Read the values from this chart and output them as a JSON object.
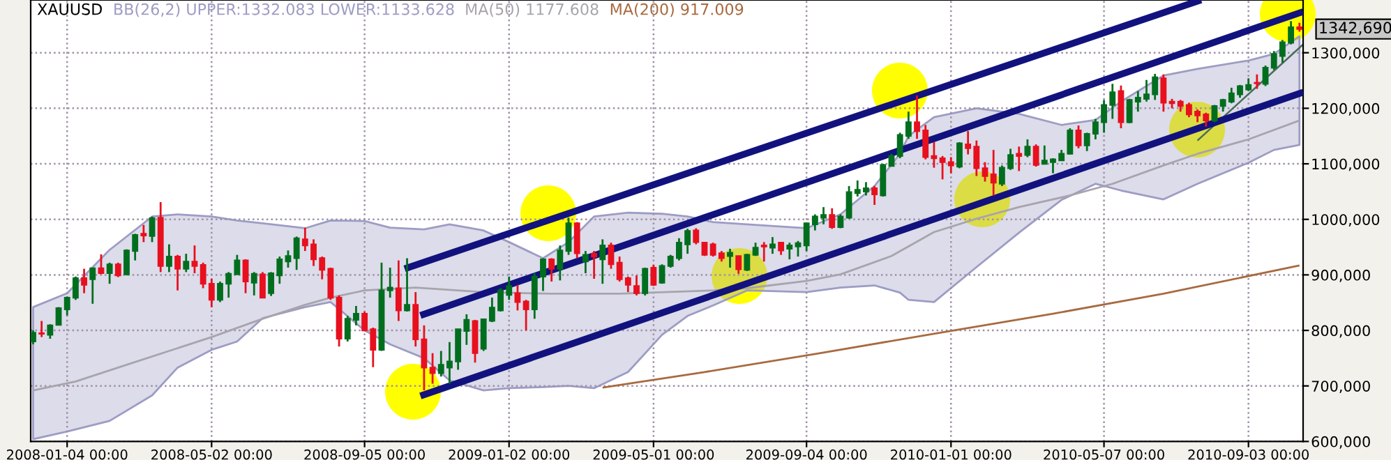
{
  "chart_data": {
    "type": "candlestick",
    "title": "XAUUSD",
    "x": [
      "2007-12-07",
      "2007-12-14",
      "2007-12-21",
      "2007-12-28",
      "2008-01-04",
      "2008-01-11",
      "2008-01-18",
      "2008-01-25",
      "2008-02-01",
      "2008-02-08",
      "2008-02-15",
      "2008-02-22",
      "2008-02-29",
      "2008-03-07",
      "2008-03-14",
      "2008-03-21",
      "2008-03-28",
      "2008-04-04",
      "2008-04-11",
      "2008-04-18",
      "2008-04-25",
      "2008-05-02",
      "2008-05-09",
      "2008-05-16",
      "2008-05-23",
      "2008-05-30",
      "2008-06-06",
      "2008-06-13",
      "2008-06-20",
      "2008-06-27",
      "2008-07-04",
      "2008-07-11",
      "2008-07-18",
      "2008-07-25",
      "2008-08-01",
      "2008-08-08",
      "2008-08-15",
      "2008-08-22",
      "2008-08-29",
      "2008-09-05",
      "2008-09-12",
      "2008-09-19",
      "2008-09-26",
      "2008-10-03",
      "2008-10-10",
      "2008-10-17",
      "2008-10-24",
      "2008-10-31",
      "2008-11-07",
      "2008-11-14",
      "2008-11-21",
      "2008-11-28",
      "2008-12-05",
      "2008-12-12",
      "2008-12-19",
      "2008-12-26",
      "2009-01-02",
      "2009-01-09",
      "2009-01-16",
      "2009-01-23",
      "2009-01-30",
      "2009-02-06",
      "2009-02-13",
      "2009-02-20",
      "2009-02-27",
      "2009-03-06",
      "2009-03-13",
      "2009-03-20",
      "2009-03-27",
      "2009-04-03",
      "2009-04-10",
      "2009-04-17",
      "2009-04-24",
      "2009-05-01",
      "2009-05-08",
      "2009-05-15",
      "2009-05-22",
      "2009-05-29",
      "2009-06-05",
      "2009-06-12",
      "2009-06-19",
      "2009-06-26",
      "2009-07-03",
      "2009-07-10",
      "2009-07-17",
      "2009-07-24",
      "2009-07-31",
      "2009-08-07",
      "2009-08-14",
      "2009-08-21",
      "2009-08-28",
      "2009-09-04",
      "2009-09-11",
      "2009-09-18",
      "2009-09-25",
      "2009-10-02",
      "2009-10-09",
      "2009-10-16",
      "2009-10-23",
      "2009-10-30",
      "2009-11-06",
      "2009-11-13",
      "2009-11-20",
      "2009-11-27",
      "2009-12-04",
      "2009-12-11",
      "2009-12-18",
      "2009-12-25",
      "2010-01-01",
      "2010-01-08",
      "2010-01-15",
      "2010-01-22",
      "2010-01-29",
      "2010-02-05",
      "2010-02-12",
      "2010-02-19",
      "2010-02-26",
      "2010-03-05",
      "2010-03-12",
      "2010-03-19",
      "2010-03-26",
      "2010-04-02",
      "2010-04-09",
      "2010-04-16",
      "2010-04-23",
      "2010-04-30",
      "2010-05-07",
      "2010-05-14",
      "2010-05-21",
      "2010-05-28",
      "2010-06-04",
      "2010-06-11",
      "2010-06-18",
      "2010-06-25",
      "2010-07-02",
      "2010-07-09",
      "2010-07-16",
      "2010-07-23",
      "2010-07-30",
      "2010-08-06",
      "2010-08-13",
      "2010-08-20",
      "2010-08-27",
      "2010-09-03",
      "2010-09-10",
      "2010-09-17",
      "2010-09-24",
      "2010-10-01",
      "2010-10-08",
      "2010-10-15"
    ],
    "ohlc": [
      [
        780000,
        800000,
        775000,
        796000
      ],
      [
        795000,
        817000,
        788000,
        794000
      ],
      [
        792000,
        811000,
        785000,
        809000
      ],
      [
        810000,
        842000,
        809000,
        840000
      ],
      [
        838000,
        861000,
        827000,
        859000
      ],
      [
        859000,
        897000,
        855000,
        894000
      ],
      [
        894000,
        911000,
        867000,
        882000
      ],
      [
        892000,
        913000,
        848000,
        912000
      ],
      [
        912000,
        937000,
        901000,
        903000
      ],
      [
        903000,
        922000,
        884000,
        919000
      ],
      [
        919000,
        922000,
        896000,
        899000
      ],
      [
        901000,
        946000,
        899000,
        944000
      ],
      [
        943000,
        974000,
        926000,
        972000
      ],
      [
        974000,
        990000,
        959000,
        971000
      ],
      [
        970000,
        1005000,
        959000,
        1002000
      ],
      [
        1003000,
        1031000,
        905000,
        916000
      ],
      [
        916000,
        955000,
        905000,
        933000
      ],
      [
        933000,
        936000,
        872000,
        911000
      ],
      [
        911000,
        938000,
        905000,
        924000
      ],
      [
        924000,
        953000,
        903000,
        916000
      ],
      [
        918000,
        922000,
        876000,
        884000
      ],
      [
        884000,
        893000,
        842000,
        855000
      ],
      [
        855000,
        888000,
        851000,
        884000
      ],
      [
        884000,
        905000,
        859000,
        902000
      ],
      [
        901000,
        936000,
        901000,
        926000
      ],
      [
        926000,
        928000,
        867000,
        888000
      ],
      [
        886000,
        905000,
        863000,
        902000
      ],
      [
        901000,
        905000,
        859000,
        859000
      ],
      [
        867000,
        905000,
        862000,
        903000
      ],
      [
        899000,
        933000,
        884000,
        928000
      ],
      [
        924000,
        944000,
        913000,
        934000
      ],
      [
        930000,
        969000,
        909000,
        966000
      ],
      [
        964000,
        985000,
        943000,
        953000
      ],
      [
        955000,
        964000,
        916000,
        928000
      ],
      [
        930000,
        933000,
        892000,
        909000
      ],
      [
        911000,
        913000,
        855000,
        859000
      ],
      [
        859000,
        863000,
        771000,
        785000
      ],
      [
        785000,
        826000,
        780000,
        821000
      ],
      [
        819000,
        844000,
        809000,
        830000
      ],
      [
        830000,
        834000,
        799000,
        800000
      ],
      [
        802000,
        805000,
        734000,
        765000
      ],
      [
        765000,
        922000,
        763000,
        872000
      ],
      [
        872000,
        913000,
        859000,
        877000
      ],
      [
        876000,
        926000,
        817000,
        836000
      ],
      [
        836000,
        930000,
        834000,
        846000
      ],
      [
        846000,
        869000,
        771000,
        784000
      ],
      [
        784000,
        809000,
        692000,
        733000
      ],
      [
        733000,
        759000,
        704000,
        723000
      ],
      [
        723000,
        763000,
        717000,
        738000
      ],
      [
        733000,
        779000,
        704000,
        744000
      ],
      [
        744000,
        802000,
        729000,
        802000
      ],
      [
        799000,
        829000,
        774000,
        819000
      ],
      [
        817000,
        819000,
        742000,
        759000
      ],
      [
        767000,
        820000,
        763000,
        820000
      ],
      [
        817000,
        859000,
        815000,
        841000
      ],
      [
        836000,
        876000,
        834000,
        872000
      ],
      [
        864000,
        897000,
        855000,
        880000
      ],
      [
        867000,
        882000,
        836000,
        851000
      ],
      [
        852000,
        855000,
        800000,
        838000
      ],
      [
        838000,
        903000,
        821000,
        897000
      ],
      [
        897000,
        930000,
        871000,
        928000
      ],
      [
        928000,
        930000,
        888000,
        911000
      ],
      [
        911000,
        953000,
        890000,
        944000
      ],
      [
        943000,
        1003000,
        936000,
        993000
      ],
      [
        993000,
        995000,
        930000,
        939000
      ],
      [
        924000,
        943000,
        903000,
        936000
      ],
      [
        938000,
        943000,
        893000,
        933000
      ],
      [
        928000,
        964000,
        884000,
        953000
      ],
      [
        953000,
        958000,
        911000,
        919000
      ],
      [
        922000,
        933000,
        888000,
        892000
      ],
      [
        894000,
        897000,
        869000,
        882000
      ],
      [
        880000,
        899000,
        863000,
        867000
      ],
      [
        867000,
        913000,
        863000,
        911000
      ],
      [
        913000,
        918000,
        880000,
        882000
      ],
      [
        886000,
        919000,
        884000,
        916000
      ],
      [
        916000,
        936000,
        913000,
        933000
      ],
      [
        930000,
        966000,
        926000,
        958000
      ],
      [
        955000,
        983000,
        938000,
        979000
      ],
      [
        980000,
        984000,
        955000,
        959000
      ],
      [
        958000,
        959000,
        934000,
        936000
      ],
      [
        955000,
        958000,
        933000,
        936000
      ],
      [
        939000,
        943000,
        924000,
        930000
      ],
      [
        934000,
        947000,
        913000,
        940000
      ],
      [
        934000,
        934000,
        902000,
        910000
      ],
      [
        909000,
        938000,
        907000,
        936000
      ],
      [
        936000,
        958000,
        934000,
        949000
      ],
      [
        953000,
        959000,
        924000,
        951000
      ],
      [
        949000,
        968000,
        938000,
        955000
      ],
      [
        958000,
        959000,
        936000,
        944000
      ],
      [
        947000,
        958000,
        928000,
        953000
      ],
      [
        951000,
        961000,
        933000,
        957000
      ],
      [
        953000,
        994000,
        943000,
        993000
      ],
      [
        991000,
        1009000,
        980000,
        1005000
      ],
      [
        1003000,
        1022000,
        991000,
        1008000
      ],
      [
        1008000,
        1020000,
        983000,
        986000
      ],
      [
        986000,
        1009000,
        984000,
        1005000
      ],
      [
        1003000,
        1060000,
        1001000,
        1049000
      ],
      [
        1047000,
        1070000,
        1041000,
        1053000
      ],
      [
        1050000,
        1067000,
        1043000,
        1056000
      ],
      [
        1056000,
        1060000,
        1026000,
        1045000
      ],
      [
        1043000,
        1100000,
        1041000,
        1098000
      ],
      [
        1096000,
        1118000,
        1095000,
        1114000
      ],
      [
        1114000,
        1156000,
        1110000,
        1152000
      ],
      [
        1150000,
        1194000,
        1145000,
        1175000
      ],
      [
        1175000,
        1223000,
        1145000,
        1159000
      ],
      [
        1160000,
        1170000,
        1108000,
        1112000
      ],
      [
        1114000,
        1139000,
        1093000,
        1110000
      ],
      [
        1110000,
        1114000,
        1072000,
        1103000
      ],
      [
        1103000,
        1112000,
        1083000,
        1097000
      ],
      [
        1095000,
        1139000,
        1092000,
        1137000
      ],
      [
        1135000,
        1159000,
        1117000,
        1128000
      ],
      [
        1131000,
        1142000,
        1078000,
        1092000
      ],
      [
        1092000,
        1103000,
        1068000,
        1078000
      ],
      [
        1081000,
        1125000,
        1043000,
        1066000
      ],
      [
        1064000,
        1097000,
        1060000,
        1093000
      ],
      [
        1092000,
        1127000,
        1089000,
        1116000
      ],
      [
        1118000,
        1131000,
        1087000,
        1114000
      ],
      [
        1116000,
        1144000,
        1112000,
        1131000
      ],
      [
        1131000,
        1135000,
        1095000,
        1098000
      ],
      [
        1100000,
        1133000,
        1100000,
        1106000
      ],
      [
        1103000,
        1110000,
        1083000,
        1108000
      ],
      [
        1106000,
        1125000,
        1106000,
        1118000
      ],
      [
        1118000,
        1164000,
        1117000,
        1160000
      ],
      [
        1160000,
        1169000,
        1128000,
        1133000
      ],
      [
        1133000,
        1156000,
        1123000,
        1154000
      ],
      [
        1154000,
        1181000,
        1144000,
        1175000
      ],
      [
        1175000,
        1215000,
        1156000,
        1206000
      ],
      [
        1206000,
        1244000,
        1181000,
        1229000
      ],
      [
        1231000,
        1241000,
        1164000,
        1175000
      ],
      [
        1175000,
        1217000,
        1173000,
        1215000
      ],
      [
        1212000,
        1231000,
        1194000,
        1219000
      ],
      [
        1217000,
        1251000,
        1212000,
        1225000
      ],
      [
        1225000,
        1262000,
        1215000,
        1256000
      ],
      [
        1254000,
        1261000,
        1194000,
        1210000
      ],
      [
        1212000,
        1217000,
        1200000,
        1209000
      ],
      [
        1212000,
        1215000,
        1194000,
        1204000
      ],
      [
        1206000,
        1210000,
        1184000,
        1189000
      ],
      [
        1194000,
        1198000,
        1175000,
        1187000
      ],
      [
        1189000,
        1192000,
        1167000,
        1178000
      ],
      [
        1178000,
        1206000,
        1175000,
        1204000
      ],
      [
        1204000,
        1217000,
        1194000,
        1215000
      ],
      [
        1212000,
        1237000,
        1209000,
        1227000
      ],
      [
        1225000,
        1242000,
        1219000,
        1240000
      ],
      [
        1234000,
        1254000,
        1231000,
        1242000
      ],
      [
        1246000,
        1261000,
        1235000,
        1245000
      ],
      [
        1244000,
        1277000,
        1240000,
        1273000
      ],
      [
        1273000,
        1303000,
        1269000,
        1298000
      ],
      [
        1294000,
        1323000,
        1282000,
        1319000
      ],
      [
        1318000,
        1357000,
        1315000,
        1346000
      ],
      [
        1346000,
        1354000,
        1338000,
        1342690
      ]
    ],
    "colors": [
      "#006e1e",
      "#e8101e",
      "#006e1e",
      "#006e1e",
      "#006e1e",
      "#006e1e",
      "#e8101e",
      "#006e1e",
      "#e8101e",
      "#006e1e",
      "#e8101e",
      "#006e1e",
      "#006e1e",
      "#e8101e",
      "#006e1e",
      "#e8101e",
      "#006e1e",
      "#e8101e",
      "#006e1e",
      "#e8101e",
      "#e8101e",
      "#e8101e",
      "#006e1e",
      "#006e1e",
      "#006e1e",
      "#e8101e",
      "#006e1e",
      "#e8101e",
      "#006e1e",
      "#006e1e",
      "#006e1e",
      "#006e1e",
      "#e8101e",
      "#e8101e",
      "#e8101e",
      "#e8101e",
      "#e8101e",
      "#006e1e",
      "#006e1e",
      "#e8101e",
      "#e8101e",
      "#006e1e",
      "#006e1e",
      "#e8101e",
      "#006e1e",
      "#e8101e",
      "#e8101e",
      "#e8101e",
      "#006e1e",
      "#006e1e",
      "#006e1e",
      "#006e1e",
      "#e8101e",
      "#006e1e",
      "#006e1e",
      "#006e1e",
      "#006e1e",
      "#e8101e",
      "#e8101e",
      "#006e1e",
      "#006e1e",
      "#e8101e",
      "#006e1e",
      "#006e1e",
      "#e8101e",
      "#006e1e",
      "#e8101e",
      "#006e1e",
      "#e8101e",
      "#e8101e",
      "#e8101e",
      "#e8101e",
      "#006e1e",
      "#e8101e",
      "#006e1e",
      "#006e1e",
      "#006e1e",
      "#006e1e",
      "#e8101e",
      "#e8101e",
      "#e8101e",
      "#e8101e",
      "#006e1e",
      "#e8101e",
      "#006e1e",
      "#006e1e",
      "#e8101e",
      "#006e1e",
      "#e8101e",
      "#006e1e",
      "#006e1e",
      "#006e1e",
      "#006e1e",
      "#006e1e",
      "#e8101e",
      "#006e1e",
      "#006e1e",
      "#006e1e",
      "#006e1e",
      "#e8101e",
      "#006e1e",
      "#006e1e",
      "#006e1e",
      "#006e1e",
      "#e8101e",
      "#e8101e",
      "#e8101e",
      "#e8101e",
      "#e8101e",
      "#006e1e",
      "#e8101e",
      "#e8101e",
      "#e8101e",
      "#e8101e",
      "#006e1e",
      "#006e1e",
      "#e8101e",
      "#006e1e",
      "#e8101e",
      "#006e1e",
      "#006e1e",
      "#006e1e",
      "#006e1e",
      "#e8101e",
      "#006e1e",
      "#006e1e",
      "#006e1e",
      "#006e1e",
      "#e8101e",
      "#006e1e",
      "#006e1e",
      "#006e1e",
      "#006e1e",
      "#e8101e",
      "#e8101e",
      "#e8101e",
      "#e8101e",
      "#e8101e",
      "#e8101e",
      "#006e1e",
      "#006e1e",
      "#006e1e",
      "#006e1e",
      "#006e1e",
      "#e8101e",
      "#006e1e",
      "#006e1e",
      "#006e1e",
      "#006e1e",
      "#e8101e"
    ],
    "series": [
      {
        "name": "BB(26,2) UPPER:1332.083 LOWER:1133.628",
        "type": "area",
        "color": "#9c9cc4",
        "x": [
          "2007-12-07",
          "2008-01-04",
          "2008-02-08",
          "2008-03-14",
          "2008-04-04",
          "2008-05-02",
          "2008-05-23",
          "2008-06-13",
          "2008-07-18",
          "2008-08-08",
          "2008-09-05",
          "2008-09-26",
          "2008-10-24",
          "2008-11-14",
          "2008-12-12",
          "2009-01-02",
          "2009-01-30",
          "2009-02-20",
          "2009-03-13",
          "2009-04-10",
          "2009-05-08",
          "2009-05-29",
          "2009-06-19",
          "2009-07-17",
          "2009-09-04",
          "2009-10-02",
          "2009-10-30",
          "2009-11-20",
          "2009-11-27",
          "2009-12-18",
          "2010-01-22",
          "2010-02-26",
          "2010-04-02",
          "2010-04-30",
          "2010-05-21",
          "2010-06-25",
          "2010-07-23",
          "2010-09-03",
          "2010-09-24",
          "2010-10-15"
        ],
        "values": [
          null,
          null,
          null,
          null,
          null,
          null,
          null,
          null,
          null,
          null,
          null,
          null,
          null,
          null,
          null,
          null,
          null,
          null,
          null,
          null,
          null,
          null,
          null,
          null,
          null,
          null,
          null,
          null,
          null,
          null,
          null,
          null,
          null,
          null,
          null,
          null,
          null,
          null,
          null,
          null
        ],
        "upper": [
          842000,
          867000,
          945000,
          1005000,
          1009000,
          1005000,
          998000,
          993000,
          984000,
          998000,
          997000,
          985000,
          982000,
          991000,
          980000,
          959000,
          930000,
          959000,
          1005000,
          1012000,
          1010000,
          1005000,
          995000,
          991000,
          984000,
          1009000,
          1060000,
          1118000,
          1150000,
          1184000,
          1200000,
          1190000,
          1170000,
          1179000,
          1212000,
          1259000,
          1271000,
          1286000,
          1298000,
          1330000
        ],
        "lower": [
          604000,
          618000,
          637000,
          683000,
          733000,
          765000,
          780000,
          822000,
          842000,
          851000,
          800000,
          775000,
          750000,
          710000,
          692000,
          696000,
          698000,
          700000,
          696000,
          725000,
          792000,
          826000,
          845000,
          872000,
          869000,
          877000,
          881000,
          868000,
          855000,
          851000,
          914000,
          976000,
          1035000,
          1064000,
          1052000,
          1036000,
          1064000,
          1102000,
          1125000,
          1134000
        ]
      },
      {
        "name": "MA(50) 1177.608",
        "type": "line",
        "color": "#a8a4ac",
        "x": [
          "2007-12-07",
          "2008-01-11",
          "2008-02-15",
          "2008-03-28",
          "2008-05-02",
          "2008-06-13",
          "2008-07-18",
          "2008-08-08",
          "2008-09-05",
          "2008-10-17",
          "2008-12-12",
          "2009-02-06",
          "2009-04-03",
          "2009-06-19",
          "2009-07-17",
          "2009-09-04",
          "2009-10-02",
          "2009-11-13",
          "2009-12-18",
          "2010-01-22",
          "2010-02-26",
          "2010-04-09",
          "2010-05-14",
          "2010-06-25",
          "2010-07-23",
          "2010-09-03",
          "2010-10-15"
        ],
        "values": [
          692000,
          708000,
          733000,
          763000,
          788000,
          821000,
          846000,
          859000,
          872000,
          877000,
          869000,
          866000,
          866000,
          872000,
          876000,
          889000,
          901000,
          934000,
          977000,
          1001000,
          1022000,
          1043000,
          1064000,
          1097000,
          1118000,
          1144000,
          1178000
        ]
      },
      {
        "name": "MA(200) 917.009",
        "type": "line",
        "color": "#a86a40",
        "x": [
          "2009-03-20",
          "2009-06-12",
          "2009-09-18",
          "2009-12-18",
          "2010-03-26",
          "2010-06-25",
          "2010-10-15"
        ],
        "values": [
          697000,
          725000,
          760000,
          794000,
          830000,
          866000,
          917000
        ]
      },
      {
        "type": "line",
        "color": "#12127e",
        "x": [
          "2008-10-08",
          "2010-07-26"
        ],
        "values": [
          911000,
          1395000
        ]
      },
      {
        "type": "line",
        "color": "#12127e",
        "x": [
          "2008-10-21",
          "2010-10-18"
        ],
        "values": [
          827000,
          1374000
        ]
      },
      {
        "type": "line",
        "color": "#12127e",
        "x": [
          "2008-10-21",
          "2010-10-18"
        ],
        "values": [
          682000,
          1229000
        ]
      },
      {
        "type": "line",
        "color": "#4a6a5a",
        "x": [
          "2010-07-23",
          "2010-10-18"
        ],
        "values": [
          1142000,
          1315000
        ]
      }
    ],
    "xlim": [
      "2007-12-05",
      "2010-10-18"
    ],
    "xticks": [
      {
        "value": "2008-01-04",
        "label": "2008-01-04 00:00"
      },
      {
        "value": "2008-05-02",
        "label": "2008-05-02 00:00"
      },
      {
        "value": "2008-09-05",
        "label": "2008-09-05 00:00"
      },
      {
        "value": "2009-01-02",
        "label": "2009-01-02 00:00"
      },
      {
        "value": "2009-05-01",
        "label": "2009-05-01 00:00"
      },
      {
        "value": "2009-09-04",
        "label": "2009-09-04 00:00"
      },
      {
        "value": "2010-01-01",
        "label": "2010-01-01 00:00"
      },
      {
        "value": "2010-05-07",
        "label": "2010-05-07 00:00"
      },
      {
        "value": "2010-09-03",
        "label": "2010-09-03 00:00"
      }
    ],
    "ylim": [
      600000,
      1395000
    ],
    "yticks": [
      {
        "value": 600000,
        "label": "600,000"
      },
      {
        "value": 700000,
        "label": "700,000"
      },
      {
        "value": 800000,
        "label": "800,000"
      },
      {
        "value": 900000,
        "label": "900,000"
      },
      {
        "value": 1000000,
        "label": "1000,000"
      },
      {
        "value": 1100000,
        "label": "1100,000"
      },
      {
        "value": 1200000,
        "label": "1200,000"
      },
      {
        "value": 1300000,
        "label": "1300,000"
      }
    ],
    "annotations": [
      {
        "text": "1342,690",
        "x": "2010-10-15",
        "y": 1342690
      }
    ],
    "grid": true,
    "legend": "top left"
  }
}
